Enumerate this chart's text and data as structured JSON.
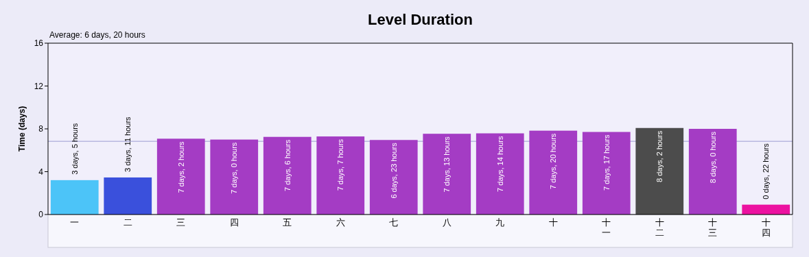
{
  "chart_data": {
    "type": "bar",
    "title": "Level Duration",
    "ylabel": "Time (days)",
    "categories": [
      "一",
      "二",
      "三",
      "四",
      "五",
      "六",
      "七",
      "八",
      "九",
      "十",
      "十一",
      "十二",
      "十三",
      "十四"
    ],
    "values": [
      3.21,
      3.46,
      7.08,
      7.0,
      7.25,
      7.29,
      6.96,
      7.54,
      7.58,
      7.83,
      7.71,
      8.08,
      8.0,
      0.92
    ],
    "colors": [
      "#4cc4f8",
      "#3a50dc",
      "#a43cc4",
      "#a43cc4",
      "#a43cc4",
      "#a43cc4",
      "#a43cc4",
      "#a43cc4",
      "#a43cc4",
      "#a43cc4",
      "#a43cc4",
      "#4c4c4c",
      "#a43cc4",
      "#ec12a0"
    ],
    "ylim": [
      0,
      16
    ],
    "yticks": [
      0,
      4,
      8,
      12,
      16
    ],
    "annotations": [
      "Average: 6 days, 20 hours",
      {
        "text": "3 days, 5 hours",
        "x": "一",
        "y": 3.21
      },
      {
        "text": "3 days, 11 hours",
        "x": "二",
        "y": 3.46
      },
      {
        "text": "7 days, 2 hours",
        "x": "三",
        "y": 7.08
      },
      {
        "text": "7 days, 0 hours",
        "x": "四",
        "y": 7.0
      },
      {
        "text": "7 days, 6 hours",
        "x": "五",
        "y": 7.25
      },
      {
        "text": "7 days, 7 hours",
        "x": "六",
        "y": 7.29
      },
      {
        "text": "6 days, 23 hours",
        "x": "七",
        "y": 6.96
      },
      {
        "text": "7 days, 13 hours",
        "x": "八",
        "y": 7.54
      },
      {
        "text": "7 days, 14 hours",
        "x": "九",
        "y": 7.58
      },
      {
        "text": "7 days, 20 hours",
        "x": "十",
        "y": 7.83
      },
      {
        "text": "7 days, 17 hours",
        "x": "十一",
        "y": 7.71
      },
      {
        "text": "8 days, 2 hours",
        "x": "十二",
        "y": 8.08
      },
      {
        "text": "8 days, 0 hours",
        "x": "十三",
        "y": 8.0
      },
      {
        "text": "0 days, 22 hours",
        "x": "十四",
        "y": 0.92
      }
    ],
    "ref_lines": [
      {
        "axis": "y",
        "value": 6.83,
        "color": "#b8b8e0"
      }
    ]
  }
}
